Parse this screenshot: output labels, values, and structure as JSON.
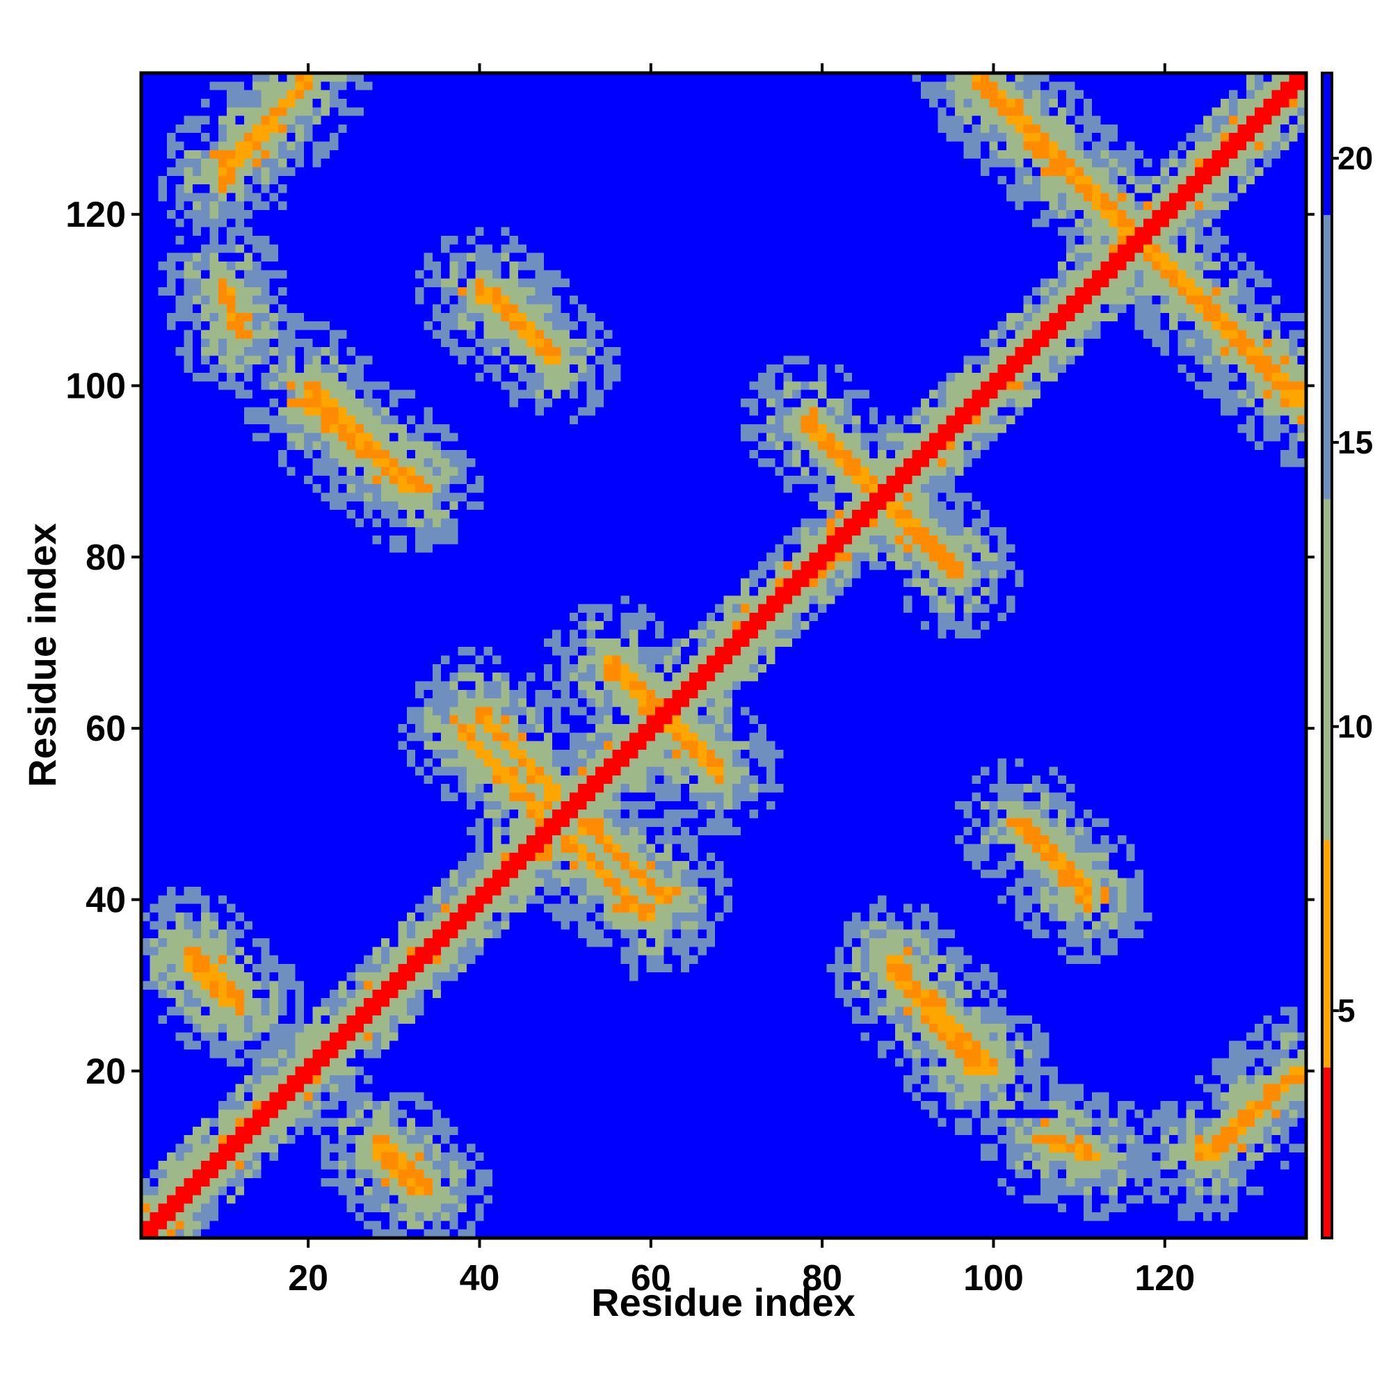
{
  "chart_data": {
    "type": "heatmap",
    "title": "",
    "xlabel": "Residue index",
    "ylabel": "Residue index",
    "n_residues": 136,
    "xlim": [
      1,
      136
    ],
    "ylim": [
      1,
      136
    ],
    "x_ticks": [
      20,
      40,
      60,
      80,
      100,
      120
    ],
    "y_ticks": [
      20,
      40,
      60,
      80,
      100,
      120
    ],
    "colorbar": {
      "ticks": [
        5,
        10,
        15,
        20
      ],
      "range": [
        1,
        21.5
      ],
      "legend_placement": "right"
    },
    "grid": false,
    "colors": {
      "background": "#0000ff",
      "diagonal": "#ff0000",
      "close_contact": "#ff8c00",
      "near": "#ffa500",
      "mid": "#9fb88a",
      "far": "#6f8fbf"
    },
    "contact_lines": [
      {
        "type": "anti",
        "from": [
          6,
          33
        ],
        "to": [
          11,
          28
        ]
      },
      {
        "type": "anti",
        "from": [
          20,
          100
        ],
        "to": [
          33,
          88
        ]
      },
      {
        "type": "anti",
        "from": [
          28,
          12
        ],
        "to": [
          34,
          6
        ]
      },
      {
        "type": "anti",
        "from": [
          40,
          62
        ],
        "to": [
          49,
          52
        ]
      },
      {
        "type": "anti",
        "from": [
          41,
          111
        ],
        "to": [
          49,
          103
        ]
      },
      {
        "type": "anti",
        "from": [
          50,
          47
        ],
        "to": [
          60,
          38
        ]
      },
      {
        "type": "anti",
        "from": [
          55,
          68
        ],
        "to": [
          68,
          55
        ]
      },
      {
        "type": "anti",
        "from": [
          78,
          96
        ],
        "to": [
          96,
          78
        ]
      },
      {
        "type": "anti",
        "from": [
          88,
          32
        ],
        "to": [
          98,
          20
        ]
      },
      {
        "type": "anti",
        "from": [
          98,
          136
        ],
        "to": [
          136,
          98
        ]
      },
      {
        "type": "anti",
        "from": [
          103,
          49
        ],
        "to": [
          111,
          40
        ]
      },
      {
        "type": "anti",
        "from": [
          125,
          10
        ],
        "to": [
          136,
          20
        ]
      },
      {
        "type": "anti",
        "from": [
          10,
          112
        ],
        "to": [
          12,
          106
        ]
      },
      {
        "type": "parallel",
        "from": [
          10,
          124
        ],
        "to": [
          20,
          136
        ]
      }
    ]
  }
}
